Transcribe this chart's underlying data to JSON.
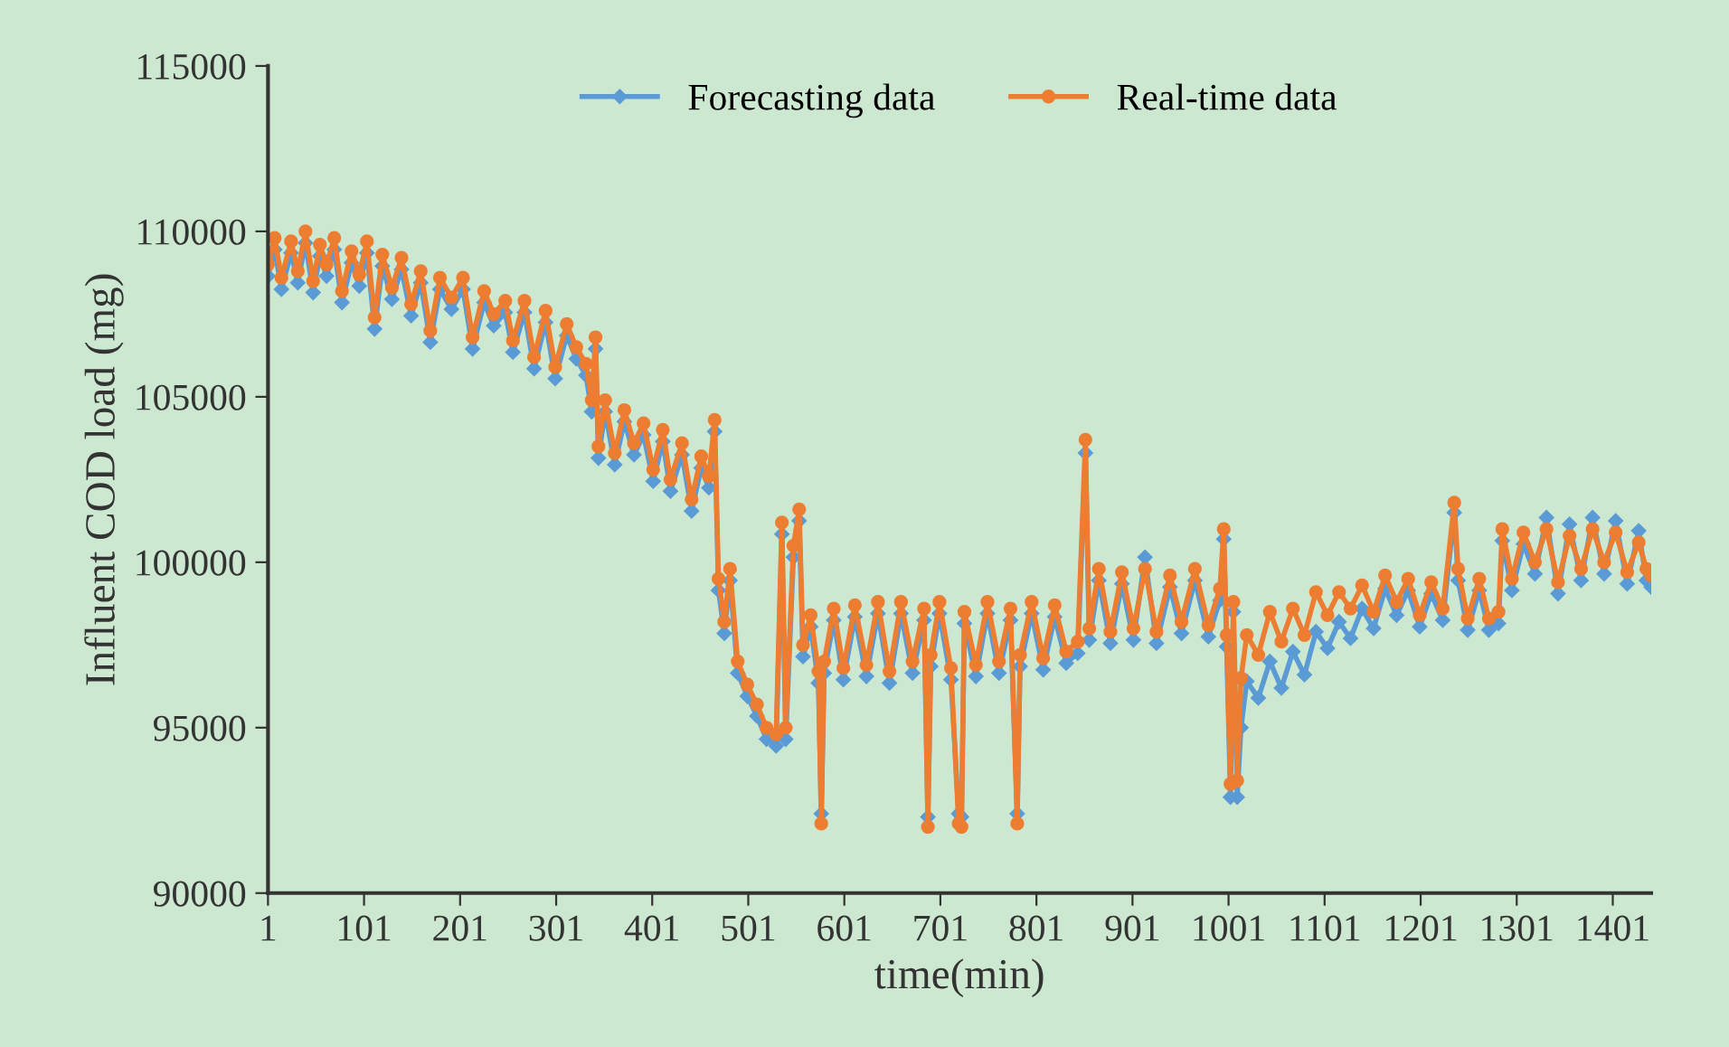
{
  "chart_data": {
    "type": "line",
    "xlabel": "time(min)",
    "ylabel": "Influent COD load (mg)",
    "legend": "top",
    "grid": false,
    "x": [
      1,
      8,
      15,
      25,
      32,
      40,
      48,
      55,
      62,
      70,
      78,
      88,
      96,
      104,
      112,
      120,
      130,
      140,
      150,
      160,
      170,
      180,
      192,
      204,
      214,
      226,
      236,
      248,
      256,
      268,
      278,
      290,
      300,
      312,
      322,
      332,
      338,
      342,
      345,
      352,
      362,
      372,
      382,
      392,
      402,
      412,
      420,
      432,
      442,
      452,
      460,
      466,
      470,
      476,
      482,
      490,
      500,
      510,
      520,
      530,
      536,
      540,
      548,
      554,
      558,
      566,
      574,
      577,
      580,
      590,
      600,
      612,
      624,
      636,
      648,
      660,
      672,
      684,
      688,
      691,
      700,
      712,
      720,
      723,
      726,
      738,
      750,
      762,
      774,
      781,
      784,
      796,
      808,
      820,
      832,
      844,
      852,
      856,
      866,
      878,
      890,
      902,
      914,
      926,
      940,
      952,
      966,
      980,
      992,
      996,
      999,
      1003,
      1006,
      1010,
      1014,
      1020,
      1032,
      1044,
      1056,
      1068,
      1080,
      1092,
      1104,
      1116,
      1128,
      1140,
      1152,
      1164,
      1176,
      1188,
      1200,
      1212,
      1224,
      1236,
      1240,
      1250,
      1262,
      1272,
      1282,
      1286,
      1296,
      1308,
      1320,
      1332,
      1344,
      1356,
      1368,
      1380,
      1392,
      1404,
      1416,
      1428,
      1436,
      1441
    ],
    "xlim": [
      1,
      1441
    ],
    "xticks": [
      1,
      101,
      201,
      301,
      401,
      501,
      601,
      701,
      801,
      901,
      1001,
      1101,
      1201,
      1301,
      1401
    ],
    "ylim": [
      90000,
      115000
    ],
    "yticks": [
      90000,
      95000,
      100000,
      105000,
      110000,
      115000
    ],
    "series": [
      {
        "name": "Forecasting data",
        "color": "#5b9bd5",
        "marker": "diamond",
        "values": [
          108650,
          109450,
          108250,
          109350,
          108450,
          109650,
          108150,
          109250,
          108650,
          109450,
          107850,
          109050,
          108350,
          109350,
          107050,
          108950,
          107950,
          108850,
          107450,
          108450,
          106650,
          108250,
          107650,
          108250,
          106450,
          107850,
          107150,
          107550,
          106350,
          107550,
          105850,
          107250,
          105550,
          106850,
          106150,
          105650,
          104550,
          106450,
          103150,
          104550,
          102950,
          104250,
          103250,
          103850,
          102450,
          103650,
          102150,
          103250,
          101550,
          102850,
          102250,
          103950,
          99150,
          97850,
          99450,
          96650,
          95950,
          95350,
          94650,
          94450,
          100850,
          94650,
          100150,
          101250,
          97150,
          98050,
          96350,
          92400,
          96650,
          98250,
          96450,
          98350,
          96550,
          98450,
          96350,
          98450,
          96650,
          98250,
          92300,
          96850,
          98450,
          96450,
          92400,
          92300,
          98150,
          96550,
          98450,
          96650,
          98250,
          92400,
          96850,
          98450,
          96750,
          98350,
          96950,
          97250,
          103300,
          97650,
          99450,
          97550,
          99350,
          97650,
          100150,
          97550,
          99250,
          97850,
          99450,
          97750,
          98850,
          100700,
          97450,
          92900,
          98500,
          92900,
          95000,
          96400,
          95900,
          97000,
          96200,
          97300,
          96600,
          97900,
          97400,
          98200,
          97700,
          98600,
          98000,
          99200,
          98400,
          99150,
          98050,
          99050,
          98250,
          101500,
          99450,
          97950,
          99150,
          97950,
          98150,
          100650,
          99150,
          100550,
          99650,
          101350,
          99050,
          101150,
          99450,
          101350,
          99650,
          101250,
          99350,
          100950,
          99450,
          99250
        ]
      },
      {
        "name": "Real-time data",
        "color": "#ed7d31",
        "marker": "circle",
        "values": [
          109000,
          109800,
          108600,
          109700,
          108800,
          110000,
          108500,
          109600,
          109000,
          109800,
          108200,
          109400,
          108700,
          109700,
          107400,
          109300,
          108300,
          109200,
          107800,
          108800,
          107000,
          108600,
          108000,
          108600,
          106800,
          108200,
          107500,
          107900,
          106700,
          107900,
          106200,
          107600,
          105900,
          107200,
          106500,
          106000,
          104900,
          106800,
          103500,
          104900,
          103300,
          104600,
          103600,
          104200,
          102800,
          104000,
          102500,
          103600,
          101900,
          103200,
          102600,
          104300,
          99500,
          98200,
          99800,
          97000,
          96300,
          95700,
          95000,
          94800,
          101200,
          95000,
          100500,
          101600,
          97500,
          98400,
          96700,
          92100,
          97000,
          98600,
          96800,
          98700,
          96900,
          98800,
          96700,
          98800,
          97000,
          98600,
          92000,
          97200,
          98800,
          96800,
          92100,
          92000,
          98500,
          96900,
          98800,
          97000,
          98600,
          92100,
          97200,
          98800,
          97100,
          98700,
          97300,
          97600,
          103700,
          98000,
          99800,
          97900,
          99700,
          98000,
          99800,
          97900,
          99600,
          98200,
          99800,
          98100,
          99200,
          101000,
          97800,
          93300,
          98800,
          93400,
          96500,
          97800,
          97200,
          98500,
          97600,
          98600,
          97800,
          99100,
          98400,
          99100,
          98600,
          99300,
          98500,
          99600,
          98800,
          99500,
          98400,
          99400,
          98600,
          101800,
          99800,
          98300,
          99500,
          98300,
          98500,
          101000,
          99500,
          100900,
          100000,
          101000,
          99400,
          100800,
          99800,
          101000,
          100000,
          100900,
          99700,
          100600,
          99800,
          99600
        ]
      }
    ]
  }
}
